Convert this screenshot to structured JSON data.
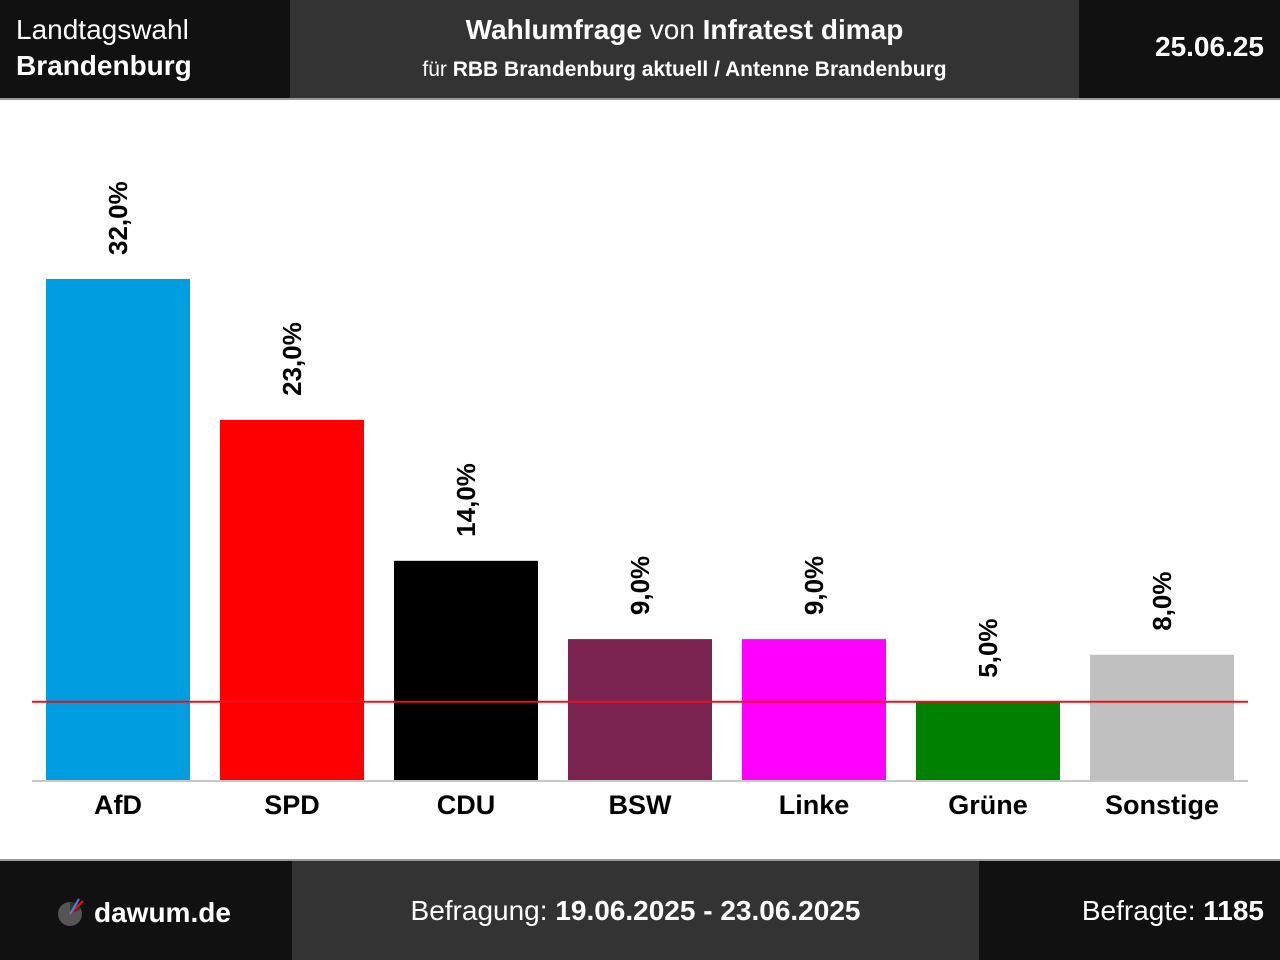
{
  "header": {
    "left_line1": "Landtagswahl",
    "left_line2": "Brandenburg",
    "title_bold1": "Wahlumfrage",
    "title_mid": " von ",
    "title_bold2": "Infratest dimap",
    "sub_prefix": "für ",
    "sub_bold": "RBB Brandenburg aktuell / Antenne Brandenburg",
    "date": "25.06.25"
  },
  "footer": {
    "site": "dawum.de",
    "period_label": "Befragung: ",
    "period_value": "19.06.2025 - 23.06.2025",
    "respondents_label": "Befragte: ",
    "respondents_value": "1185"
  },
  "colors": {
    "threshold_line": "#e8101e",
    "axis": "#c8c8c8"
  },
  "chart_data": {
    "type": "bar",
    "categories": [
      "AfD",
      "SPD",
      "CDU",
      "BSW",
      "Linke",
      "Grüne",
      "Sonstige"
    ],
    "values": [
      32.0,
      23.0,
      14.0,
      9.0,
      9.0,
      5.0,
      8.0
    ],
    "value_labels": [
      "32,0%",
      "23,0%",
      "14,0%",
      "9,0%",
      "9,0%",
      "5,0%",
      "8,0%"
    ],
    "colors": [
      "#009ee0",
      "#ff0000",
      "#000000",
      "#7b2450",
      "#ff00ff",
      "#008000",
      "#c0c0c0"
    ],
    "threshold": 5.0,
    "ylim": [
      0,
      32.0
    ],
    "grid": false,
    "legend": "none"
  }
}
